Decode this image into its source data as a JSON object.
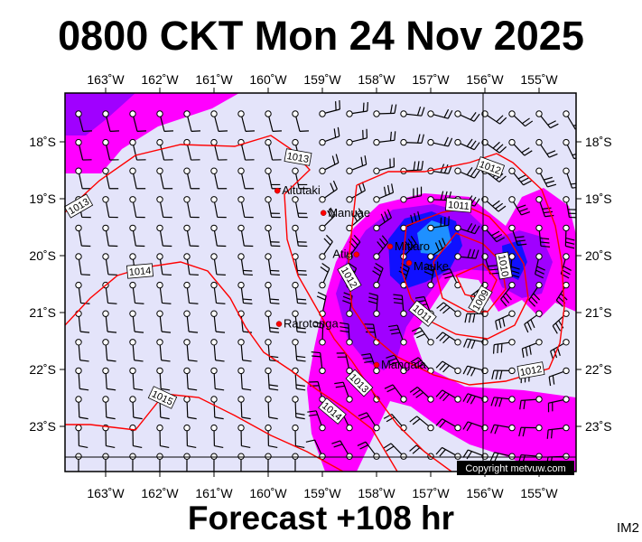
{
  "header": {
    "title": "0800 CKT Mon 24 Nov 2025"
  },
  "footer": {
    "forecast": "Forecast +108 hr",
    "image_id": "IM2",
    "copyright": "Copyright metvuw.com"
  },
  "map": {
    "lon_range_W": [
      163.75,
      154.4
    ],
    "lat_range_S": [
      17.15,
      23.8
    ],
    "lon_ticks": [
      "163˚W",
      "162˚W",
      "161˚W",
      "160˚W",
      "159˚W",
      "158˚W",
      "157˚W",
      "156˚W",
      "155˚W"
    ],
    "lat_ticks": [
      "18˚S",
      "19˚S",
      "20˚S",
      "21˚S",
      "22˚S",
      "23˚S"
    ],
    "wind_grid_spacing_deg": 0.5,
    "colors": {
      "background": "#e4e4fa",
      "isobar": "#ff0000",
      "rain_light": "#ff00ff",
      "rain_moderate": "#a000ff",
      "rain_heavy": "#1010ff",
      "rain_very_heavy": "#1e90ff",
      "city_marker": "#ff0000"
    },
    "cities": [
      {
        "name": "Aitutaki",
        "lon_W": 159.83,
        "lat_S": 18.86
      },
      {
        "name": "Manuae",
        "lon_W": 158.98,
        "lat_S": 19.25
      },
      {
        "name": "Atiu",
        "lon_W": 158.37,
        "lat_S": 19.98
      },
      {
        "name": "Mitiaro",
        "lon_W": 157.75,
        "lat_S": 19.84
      },
      {
        "name": "Mauke",
        "lon_W": 157.4,
        "lat_S": 20.13
      },
      {
        "name": "Rarotonga",
        "lon_W": 159.8,
        "lat_S": 21.2
      },
      {
        "name": "Mangaia",
        "lon_W": 158.0,
        "lat_S": 21.92
      }
    ],
    "isobar_labels": [
      "1013",
      "1013",
      "1014",
      "1015",
      "1012",
      "1012",
      "1011",
      "1011",
      "1010",
      "1009",
      "1012",
      "1013",
      "1014"
    ]
  }
}
